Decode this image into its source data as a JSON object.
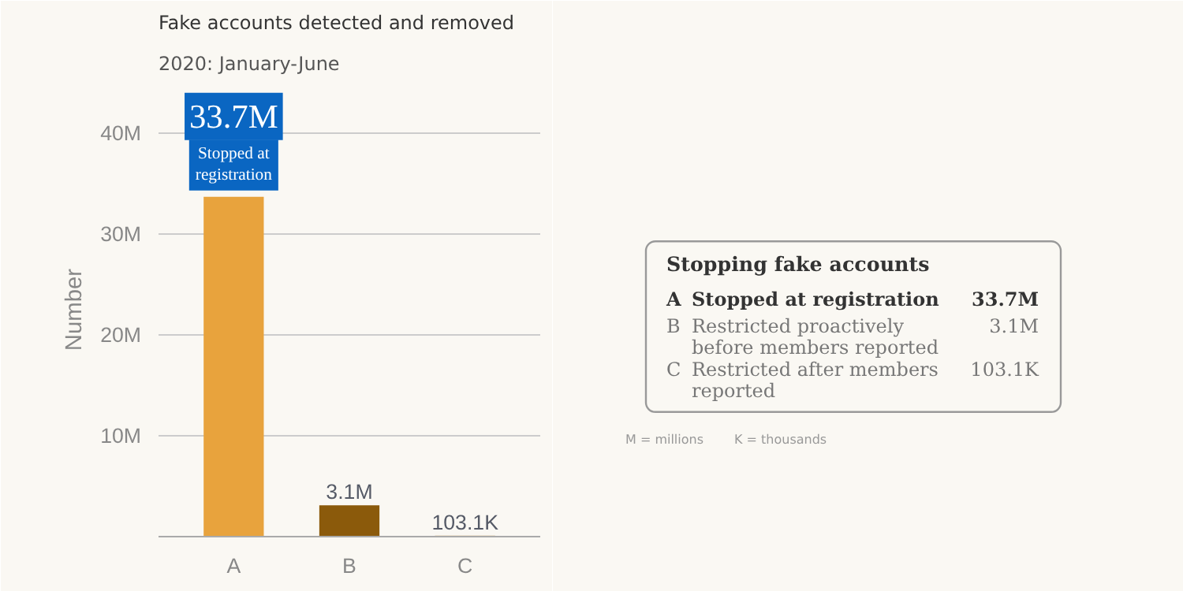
{
  "chart_data": {
    "type": "bar",
    "title": "Fake accounts detected and removed",
    "subtitle": "2020: January-June",
    "ylabel": "Number",
    "categories": [
      "A",
      "B",
      "C"
    ],
    "values": [
      33700000,
      3100000,
      103100
    ],
    "colors": [
      "#e8a33d",
      "#8b5a0b",
      "#c9a46a"
    ],
    "value_labels": [
      "33.7M",
      "3.1M",
      "103.1K"
    ],
    "ylim": [
      0,
      45000000
    ],
    "yticks": [
      {
        "value": 10000000,
        "label": "10M"
      },
      {
        "value": 20000000,
        "label": "20M"
      },
      {
        "value": 30000000,
        "label": "30M"
      },
      {
        "value": 40000000,
        "label": "40M"
      }
    ],
    "grid": "y",
    "annotations": [
      "Stopping fake accounts",
      "Stopped at registration",
      "Stopped at registration",
      "Restricted proactively before members reported",
      "Restricted after members reported",
      "M = millions",
      "K = thousands"
    ]
  }
}
